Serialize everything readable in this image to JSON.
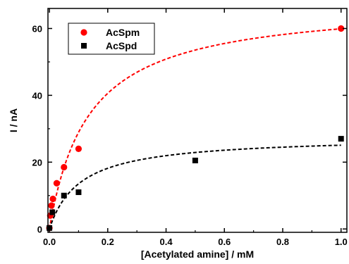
{
  "chart_data": {
    "type": "scatter",
    "xlabel": "[Acetylated amine]   /   mM",
    "ylabel": "I   /   nA",
    "xlim": [
      -0.005,
      1.02
    ],
    "ylim": [
      -1,
      66
    ],
    "x_ticks": [
      0.0,
      0.2,
      0.4,
      0.6,
      0.8,
      1.0
    ],
    "x_tick_labels": [
      "0.0",
      "0.2",
      "0.4",
      "0.6",
      "0.8",
      "1.0"
    ],
    "y_ticks": [
      0,
      20,
      40,
      60
    ],
    "y_tick_labels": [
      "0",
      "20",
      "40",
      "60"
    ],
    "legend_position": "top-left",
    "series": [
      {
        "name": "AcSpm",
        "marker": "circle",
        "color": "#ff0000",
        "x": [
          0.0,
          0.003,
          0.007,
          0.012,
          0.025,
          0.05,
          0.1,
          1.0
        ],
        "y": [
          0.3,
          4.0,
          7.0,
          9.0,
          13.7,
          18.5,
          24.0,
          60.0
        ],
        "fit": {
          "model": "michaelis-menten",
          "vmax": 68.0,
          "km": 0.135,
          "style": "dashed",
          "color": "#ff0000"
        }
      },
      {
        "name": "AcSpd",
        "marker": "square",
        "color": "#000000",
        "x": [
          0.0,
          0.01,
          0.05,
          0.1,
          0.5,
          1.0
        ],
        "y": [
          0.3,
          5.0,
          10.0,
          11.0,
          20.5,
          27.0
        ],
        "fit": {
          "model": "michaelis-menten",
          "vmax": 27.7,
          "km": 0.105,
          "style": "dashed",
          "color": "#000000"
        }
      }
    ]
  }
}
